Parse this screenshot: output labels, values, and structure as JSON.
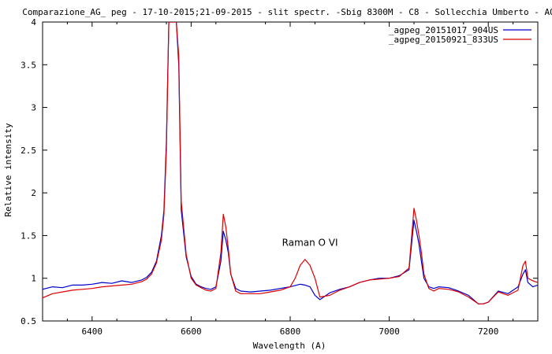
{
  "chart_data": {
    "type": "line",
    "title": "Comparazione_AG_ peg - 17-10-2015;21-09-2015 - slit spectr. -Sbig 8300M -  C8  - Sollecchia Umberto - AQ",
    "xlabel": "Wavelength (A)",
    "ylabel": "Relative intensity",
    "xlim": [
      6300,
      7300
    ],
    "ylim": [
      0.5,
      4
    ],
    "xticks": [
      "6400",
      "6600",
      "6800",
      "7000",
      "7200"
    ],
    "yticks": [
      "0.5",
      "1",
      "1.5",
      "2",
      "2.5",
      "3",
      "3.5",
      "4"
    ],
    "legend_position": "top-right",
    "grid": false,
    "annotation": {
      "text": "Raman O VI",
      "x": 6840,
      "y": 1.38
    },
    "series": [
      {
        "name": "_agpeg_20151017_904US",
        "color": "#0000cc",
        "x": [
          6300,
          6320,
          6340,
          6360,
          6380,
          6400,
          6420,
          6440,
          6460,
          6480,
          6500,
          6510,
          6520,
          6530,
          6540,
          6545,
          6550,
          6555,
          6560,
          6565,
          6570,
          6575,
          6580,
          6590,
          6600,
          6610,
          6620,
          6630,
          6640,
          6650,
          6660,
          6665,
          6670,
          6675,
          6680,
          6690,
          6700,
          6720,
          6740,
          6760,
          6780,
          6800,
          6820,
          6830,
          6840,
          6850,
          6860,
          6880,
          6900,
          6920,
          6940,
          6960,
          6980,
          7000,
          7020,
          7040,
          7050,
          7055,
          7060,
          7065,
          7070,
          7080,
          7090,
          7100,
          7120,
          7140,
          7160,
          7180,
          7190,
          7200,
          7220,
          7240,
          7260,
          7270,
          7275,
          7280,
          7290,
          7300
        ],
        "y": [
          0.87,
          0.9,
          0.89,
          0.92,
          0.92,
          0.93,
          0.95,
          0.94,
          0.97,
          0.95,
          0.98,
          1.01,
          1.07,
          1.2,
          1.5,
          1.8,
          2.6,
          4.0,
          4.0,
          4.0,
          4.0,
          3.5,
          1.8,
          1.25,
          1.02,
          0.93,
          0.9,
          0.88,
          0.87,
          0.9,
          1.2,
          1.55,
          1.45,
          1.3,
          1.05,
          0.88,
          0.85,
          0.84,
          0.85,
          0.86,
          0.88,
          0.9,
          0.93,
          0.92,
          0.9,
          0.8,
          0.75,
          0.83,
          0.87,
          0.9,
          0.95,
          0.98,
          1.0,
          1.0,
          1.03,
          1.1,
          1.68,
          1.55,
          1.4,
          1.2,
          1.0,
          0.9,
          0.88,
          0.9,
          0.89,
          0.85,
          0.8,
          0.7,
          0.7,
          0.72,
          0.85,
          0.82,
          0.9,
          1.05,
          1.1,
          0.95,
          0.9,
          0.92
        ]
      },
      {
        "name": "_agpeg_20150921_833US",
        "color": "#dd0000",
        "x": [
          6300,
          6320,
          6340,
          6360,
          6380,
          6400,
          6420,
          6440,
          6460,
          6480,
          6500,
          6510,
          6520,
          6530,
          6540,
          6545,
          6550,
          6555,
          6560,
          6565,
          6570,
          6575,
          6580,
          6590,
          6600,
          6610,
          6620,
          6630,
          6640,
          6650,
          6660,
          6665,
          6670,
          6675,
          6680,
          6690,
          6700,
          6720,
          6740,
          6760,
          6780,
          6800,
          6810,
          6820,
          6830,
          6840,
          6850,
          6860,
          6880,
          6900,
          6920,
          6940,
          6960,
          6980,
          7000,
          7020,
          7040,
          7050,
          7055,
          7060,
          7065,
          7070,
          7080,
          7090,
          7100,
          7120,
          7140,
          7160,
          7180,
          7190,
          7200,
          7220,
          7240,
          7260,
          7270,
          7275,
          7280,
          7290,
          7300
        ],
        "y": [
          0.77,
          0.82,
          0.84,
          0.86,
          0.87,
          0.88,
          0.9,
          0.91,
          0.92,
          0.93,
          0.96,
          0.99,
          1.05,
          1.18,
          1.45,
          1.75,
          2.5,
          4.0,
          4.0,
          4.0,
          4.0,
          3.6,
          1.9,
          1.28,
          1.0,
          0.92,
          0.89,
          0.86,
          0.85,
          0.88,
          1.3,
          1.75,
          1.6,
          1.35,
          1.05,
          0.85,
          0.82,
          0.82,
          0.82,
          0.84,
          0.86,
          0.9,
          1.0,
          1.15,
          1.22,
          1.15,
          1.0,
          0.78,
          0.8,
          0.86,
          0.9,
          0.95,
          0.98,
          0.99,
          1.0,
          1.02,
          1.12,
          1.82,
          1.68,
          1.5,
          1.3,
          1.05,
          0.88,
          0.85,
          0.88,
          0.87,
          0.84,
          0.78,
          0.7,
          0.7,
          0.72,
          0.84,
          0.8,
          0.86,
          1.15,
          1.2,
          1.0,
          0.97,
          0.95
        ]
      }
    ]
  }
}
